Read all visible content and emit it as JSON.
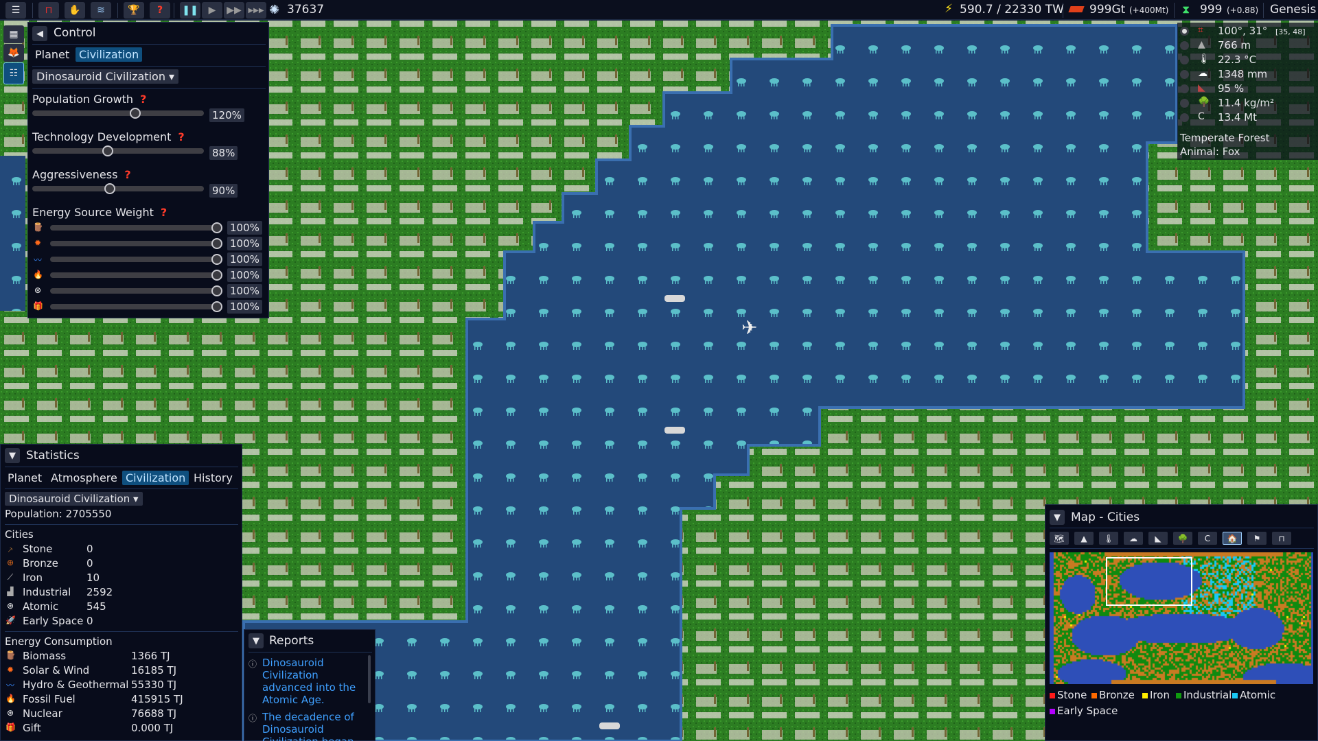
{
  "colors": {
    "ocean": "#23497a",
    "land": "#2c7d22",
    "panel": "#080c1b",
    "accent": "#0f4f7e",
    "link": "#3fa0ff",
    "help": "#ff3b2a"
  },
  "topbar": {
    "buttons": [
      {
        "icon": "menu-icon"
      },
      {
        "icon": "crane-icon"
      },
      {
        "icon": "hand-icon"
      },
      {
        "icon": "layers-icon"
      },
      {
        "icon": "trophy-icon"
      },
      {
        "icon": "help-icon"
      },
      {
        "icon": "pause-icon"
      },
      {
        "icon": "play-icon"
      },
      {
        "icon": "fast-forward-icon"
      },
      {
        "icon": "fastest-icon"
      }
    ],
    "year": "37637",
    "energy": "590.7 / 22330 TW",
    "mineral": "999Gt",
    "mineral_delta": "(+400Mt)",
    "gene": "999",
    "gene_delta": "(+0.88)",
    "mode": "Genesis"
  },
  "control": {
    "title": "Control",
    "tabs": [
      "Planet",
      "Civilization"
    ],
    "active_tab": "Civilization",
    "civ_select": "Dinosauroid Civilization",
    "sliders": [
      {
        "label": "Population Growth",
        "value": 120,
        "max": 200,
        "display": "120%"
      },
      {
        "label": "Technology Development",
        "value": 88,
        "max": 200,
        "display": "88%"
      },
      {
        "label": "Aggressiveness",
        "value": 90,
        "max": 200,
        "display": "90%"
      }
    ],
    "energy_title": "Energy Source Weight",
    "energy_weights": [
      {
        "icon": "biomass-icon",
        "value": 100,
        "display": "100%"
      },
      {
        "icon": "solar-wind-icon",
        "value": 100,
        "display": "100%"
      },
      {
        "icon": "hydro-icon",
        "value": 100,
        "display": "100%"
      },
      {
        "icon": "fossil-fuel-icon",
        "value": 100,
        "display": "100%"
      },
      {
        "icon": "nuclear-icon",
        "value": 100,
        "display": "100%"
      },
      {
        "icon": "gift-icon",
        "value": 100,
        "display": "100%"
      }
    ]
  },
  "tile_info": {
    "coords": "100°, 31°",
    "grid": "[35, 48]",
    "elevation": "766 m",
    "temperature": "22.3 °C",
    "rainfall": "1348 mm",
    "fertility": "95 %",
    "biomass": "11.4 kg/m²",
    "carbon": "13.4 Mt",
    "biome": "Temperate Forest",
    "animal": "Animal: Fox"
  },
  "statistics": {
    "title": "Statistics",
    "tabs": [
      "Planet",
      "Atmosphere",
      "Civilization",
      "History"
    ],
    "active_tab": "Civilization",
    "civ_select": "Dinosauroid Civilization",
    "population": "Population: 2705550",
    "cities_title": "Cities",
    "cities": [
      {
        "label": "Stone",
        "value": "0",
        "icon": "stone-axe-icon"
      },
      {
        "label": "Bronze",
        "value": "0",
        "icon": "bronze-icon"
      },
      {
        "label": "Iron",
        "value": "10",
        "icon": "iron-sword-icon"
      },
      {
        "label": "Industrial",
        "value": "2592",
        "icon": "factory-icon"
      },
      {
        "label": "Atomic",
        "value": "545",
        "icon": "atom-icon"
      },
      {
        "label": "Early Space",
        "value": "0",
        "icon": "rocket-icon"
      }
    ],
    "energy_title": "Energy Consumption",
    "energy": [
      {
        "label": "Biomass",
        "value": "1366 TJ"
      },
      {
        "label": "Solar & Wind",
        "value": "16185 TJ"
      },
      {
        "label": "Hydro & Geothermal",
        "value": "55330 TJ"
      },
      {
        "label": "Fossil Fuel",
        "value": "415915 TJ"
      },
      {
        "label": "Nuclear",
        "value": "76688 TJ"
      },
      {
        "label": "Gift",
        "value": "0.000 TJ"
      }
    ]
  },
  "reports": {
    "title": "Reports",
    "items": [
      "Dinosauroid Civilization advanced into the Atomic Age.",
      "The decadence of Dinosauroid Civilization began"
    ]
  },
  "minimap": {
    "title": "Map - Cities",
    "tools": [
      "terrain-icon",
      "elevation-icon",
      "temperature-icon",
      "rainfall-icon",
      "fertility-icon",
      "biomass-icon",
      "carbon-icon",
      "cities-icon",
      "flag-icon",
      "crane-icon"
    ],
    "active_tool": "cities-icon",
    "legend": [
      {
        "label": "Stone",
        "color": "#ff1a1a"
      },
      {
        "label": "Bronze",
        "color": "#ff6a00"
      },
      {
        "label": "Iron",
        "color": "#ffee00"
      },
      {
        "label": "Industrial",
        "color": "#0f9a0f"
      },
      {
        "label": "Atomic",
        "color": "#19c8f5"
      },
      {
        "label": "Early Space",
        "color": "#b400ff"
      }
    ]
  }
}
